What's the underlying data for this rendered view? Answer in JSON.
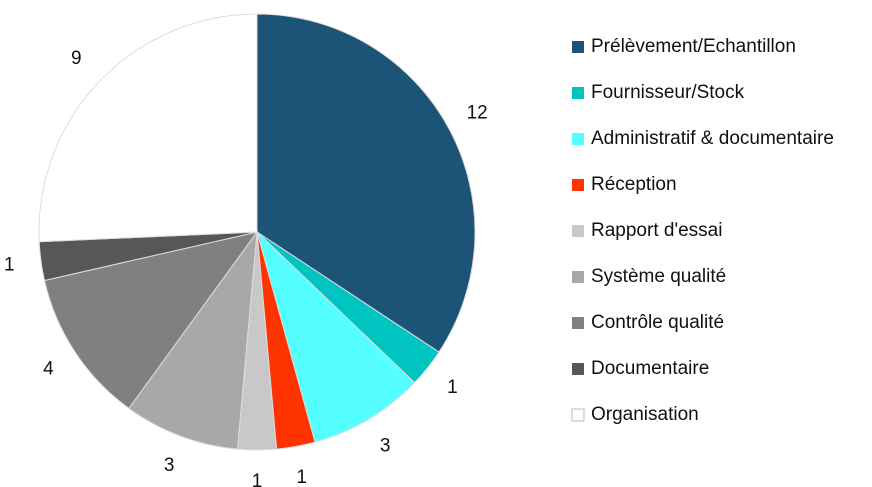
{
  "chart_data": {
    "type": "pie",
    "categories": [
      "Prélèvement/Echantillon",
      "Fournisseur/Stock",
      "Administratif & documentaire",
      "Réception",
      "Rapport d'essai",
      "Système qualité",
      "Contrôle qualité",
      "Documentaire",
      "Organisation"
    ],
    "values": [
      12,
      1,
      3,
      1,
      1,
      3,
      4,
      1,
      9
    ],
    "colors": [
      "#1c5478",
      "#00c4c0",
      "#55ffff",
      "#ff3300",
      "#c8c8c8",
      "#a8a8a8",
      "#808080",
      "#575757",
      "#ffffff"
    ],
    "legend": "right"
  }
}
